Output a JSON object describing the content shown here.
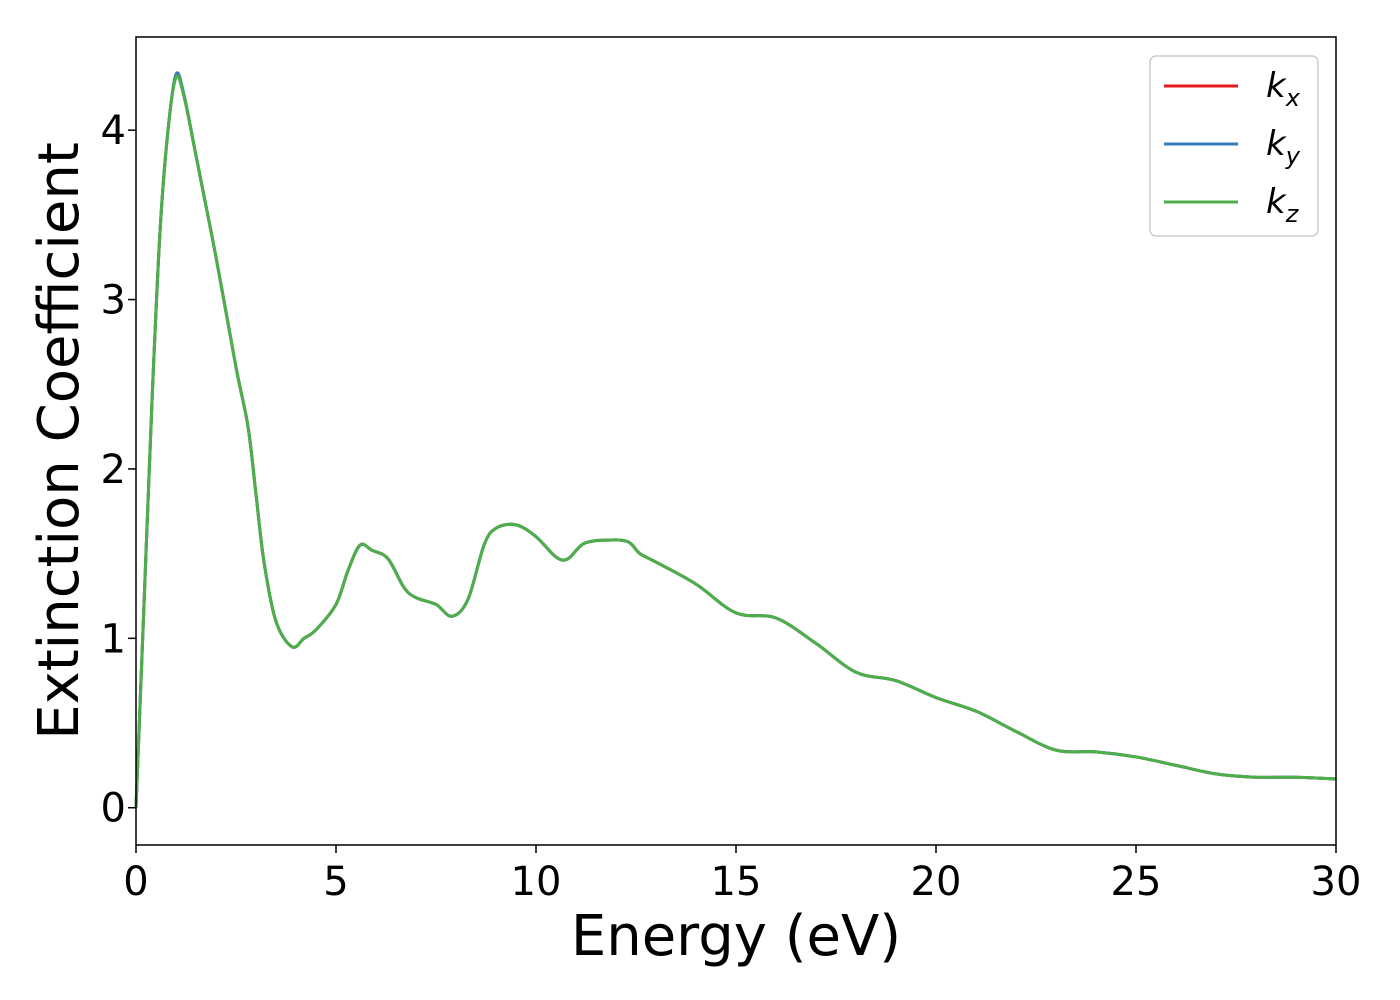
{
  "chart_data": {
    "type": "line",
    "xlabel": "Energy (eV)",
    "ylabel": "Extinction Coefficient",
    "xlim": [
      0,
      30
    ],
    "ylim": [
      -0.22,
      4.55
    ],
    "xticks": [
      0,
      5,
      10,
      15,
      20,
      25,
      30
    ],
    "yticks": [
      0,
      1,
      2,
      3,
      4
    ],
    "grid": false,
    "legend_position": "top-right",
    "x": [
      0,
      0.2,
      0.4,
      0.6,
      0.8,
      1.0,
      1.2,
      1.5,
      2.0,
      2.5,
      2.8,
      3.0,
      3.2,
      3.5,
      3.9,
      4.2,
      4.5,
      5.0,
      5.3,
      5.6,
      5.9,
      6.3,
      6.7,
      7.0,
      7.5,
      7.9,
      8.3,
      8.7,
      9.0,
      9.5,
      10.0,
      10.5,
      10.8,
      11.2,
      11.8,
      12.3,
      12.6,
      13.0,
      14.0,
      15.0,
      16.0,
      17.0,
      18.0,
      19.0,
      20.0,
      21.0,
      22.0,
      23.0,
      24.0,
      25.0,
      26.0,
      27.0,
      28.0,
      29.0,
      30.0
    ],
    "series": [
      {
        "name": "k_x",
        "label_main": "k",
        "label_sub": "x",
        "color": "#e41a1c",
        "values": [
          0.0,
          1.2,
          2.4,
          3.4,
          4.0,
          4.32,
          4.2,
          3.85,
          3.25,
          2.6,
          2.25,
          1.85,
          1.45,
          1.1,
          0.95,
          1.0,
          1.05,
          1.2,
          1.4,
          1.55,
          1.52,
          1.47,
          1.3,
          1.24,
          1.2,
          1.13,
          1.23,
          1.55,
          1.65,
          1.67,
          1.6,
          1.48,
          1.47,
          1.56,
          1.58,
          1.57,
          1.5,
          1.45,
          1.32,
          1.15,
          1.12,
          0.97,
          0.8,
          0.75,
          0.65,
          0.57,
          0.45,
          0.34,
          0.33,
          0.3,
          0.25,
          0.2,
          0.18,
          0.18,
          0.17
        ]
      },
      {
        "name": "k_y",
        "label_main": "k",
        "label_sub": "y",
        "color": "#377eb8",
        "values": [
          0.0,
          1.2,
          2.4,
          3.4,
          4.0,
          4.33,
          4.21,
          3.85,
          3.25,
          2.6,
          2.25,
          1.85,
          1.45,
          1.1,
          0.95,
          1.0,
          1.05,
          1.2,
          1.4,
          1.55,
          1.52,
          1.47,
          1.3,
          1.24,
          1.2,
          1.13,
          1.23,
          1.55,
          1.65,
          1.67,
          1.6,
          1.48,
          1.47,
          1.56,
          1.58,
          1.57,
          1.5,
          1.45,
          1.32,
          1.15,
          1.12,
          0.97,
          0.8,
          0.75,
          0.65,
          0.57,
          0.45,
          0.34,
          0.33,
          0.3,
          0.25,
          0.2,
          0.18,
          0.18,
          0.17
        ]
      },
      {
        "name": "k_z",
        "label_main": "k",
        "label_sub": "z",
        "color": "#4daf4a",
        "values": [
          0.0,
          1.2,
          2.4,
          3.4,
          4.0,
          4.31,
          4.2,
          3.85,
          3.25,
          2.6,
          2.25,
          1.85,
          1.45,
          1.1,
          0.95,
          1.0,
          1.05,
          1.2,
          1.4,
          1.55,
          1.52,
          1.47,
          1.3,
          1.24,
          1.2,
          1.13,
          1.23,
          1.55,
          1.65,
          1.67,
          1.6,
          1.48,
          1.47,
          1.56,
          1.58,
          1.57,
          1.5,
          1.45,
          1.32,
          1.15,
          1.12,
          0.97,
          0.8,
          0.75,
          0.65,
          0.57,
          0.45,
          0.34,
          0.33,
          0.3,
          0.25,
          0.2,
          0.18,
          0.18,
          0.17
        ]
      }
    ]
  }
}
